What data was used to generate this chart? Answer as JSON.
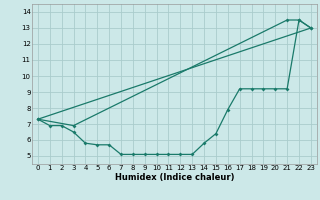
{
  "title": "",
  "xlabel": "Humidex (Indice chaleur)",
  "bg_color": "#cce8e8",
  "grid_color": "#aacccc",
  "line_color": "#1a7a6a",
  "xlim": [
    -0.5,
    23.5
  ],
  "ylim": [
    4.5,
    14.5
  ],
  "xticks": [
    0,
    1,
    2,
    3,
    4,
    5,
    6,
    7,
    8,
    9,
    10,
    11,
    12,
    13,
    14,
    15,
    16,
    17,
    18,
    19,
    20,
    21,
    22,
    23
  ],
  "yticks": [
    5,
    6,
    7,
    8,
    9,
    10,
    11,
    12,
    13,
    14
  ],
  "line1_x": [
    0,
    1,
    2,
    3,
    4,
    5,
    6,
    7,
    8,
    9,
    10,
    11,
    12,
    13,
    14,
    15,
    16,
    17,
    18,
    19,
    20,
    21,
    22,
    23
  ],
  "line1_y": [
    7.3,
    6.9,
    6.9,
    6.5,
    5.8,
    5.7,
    5.7,
    5.1,
    5.1,
    5.1,
    5.1,
    5.1,
    5.1,
    5.1,
    5.8,
    6.4,
    7.9,
    9.2,
    9.2,
    9.2,
    9.2,
    9.2,
    13.5,
    13.0
  ],
  "line2_x": [
    0,
    3,
    21,
    22,
    23
  ],
  "line2_y": [
    7.3,
    6.9,
    13.5,
    13.5,
    13.0
  ],
  "line3_x": [
    0,
    23
  ],
  "line3_y": [
    7.3,
    13.0
  ],
  "xlabel_fontsize": 6.0,
  "tick_fontsize": 5.0
}
